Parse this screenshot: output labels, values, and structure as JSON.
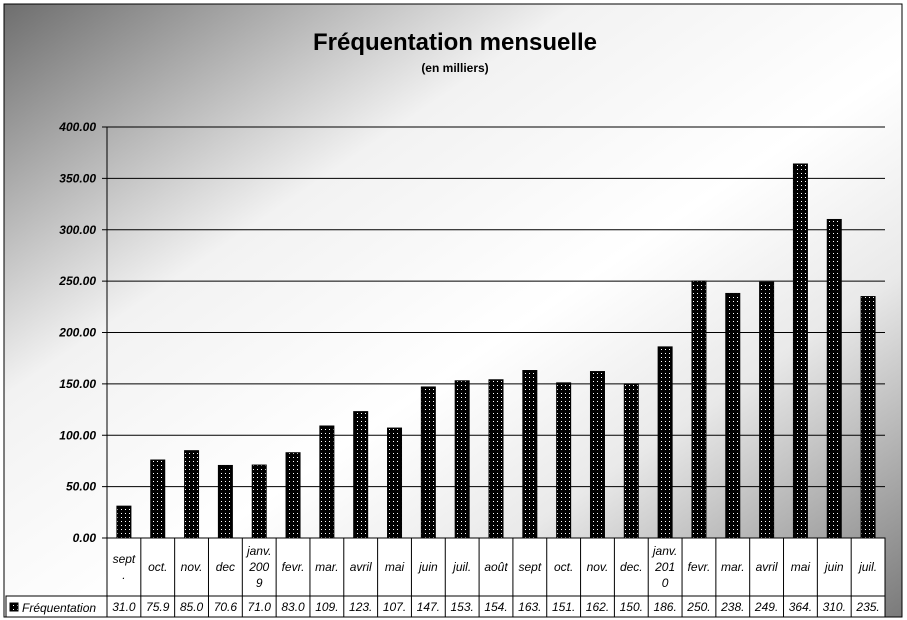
{
  "chart_data": {
    "type": "bar",
    "title": "Fréquentation mensuelle",
    "subtitle": "(en milliers)",
    "categories": [
      [
        "sept",
        "."
      ],
      [
        "oct."
      ],
      [
        "nov."
      ],
      [
        "dec"
      ],
      [
        "janv.",
        "200",
        "9"
      ],
      [
        "fevr."
      ],
      [
        "mar."
      ],
      [
        "avril"
      ],
      [
        "mai"
      ],
      [
        "juin"
      ],
      [
        "juil."
      ],
      [
        "août"
      ],
      [
        "sept"
      ],
      [
        "oct."
      ],
      [
        "nov."
      ],
      [
        "dec."
      ],
      [
        "janv.",
        "201",
        "0"
      ],
      [
        "fevr."
      ],
      [
        "mar."
      ],
      [
        "avril"
      ],
      [
        "mai"
      ],
      [
        "juin"
      ],
      [
        "juil."
      ]
    ],
    "series": [
      {
        "name": "Fréquentation",
        "values": [
          31.0,
          75.9,
          85.0,
          70.6,
          71.0,
          83.0,
          109,
          123,
          107,
          147,
          153,
          154,
          163,
          151,
          162,
          150,
          186,
          250,
          238,
          249,
          364,
          310,
          235
        ],
        "table_labels": [
          "31.0",
          "75.9",
          "85.0",
          "70.6",
          "71.0",
          "83.0",
          "109.",
          "123.",
          "107.",
          "147.",
          "153.",
          "154.",
          "163.",
          "151.",
          "162.",
          "150.",
          "186.",
          "250.",
          "238.",
          "249.",
          "364.",
          "310.",
          "235."
        ]
      }
    ],
    "y_ticks": [
      "0.00",
      "50.00",
      "100.00",
      "150.00",
      "200.00",
      "250.00",
      "300.00",
      "350.00",
      "400.00"
    ],
    "ylim": [
      0,
      400
    ],
    "grid": true,
    "legend": "data-table",
    "colors": {
      "bar": "#000000",
      "bar_dots": "#ffffff",
      "grid": "#000000"
    }
  }
}
